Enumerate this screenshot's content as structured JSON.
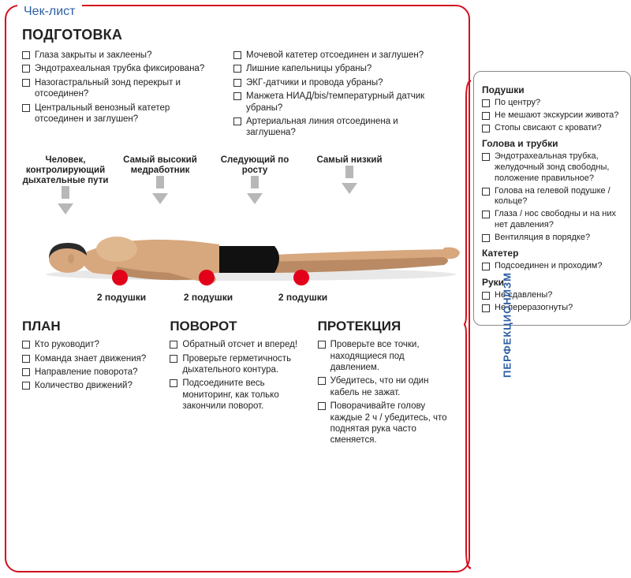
{
  "title_tab": "Чек-лист",
  "preparation": {
    "heading": "ПОДГОТОВКА",
    "left": [
      "Глаза закрыты и заклеены?",
      "Эндотрахеальная трубка фиксирована?",
      "Назогастральный зонд перекрыт и отсоединен?",
      "Центральный венозный катетер отсоединен и заглушен?"
    ],
    "right": [
      "Мочевой катетер отсоединен и заглушен?",
      "Лишние капельницы убраны?",
      "ЭКГ-датчики и провода убраны?",
      "Манжета НИАД/bis/температурный датчик убраны?",
      "Артериальная линия отсоединена и заглушена?"
    ]
  },
  "staff": [
    {
      "label": "Человек, контролирующий дыхательные пути"
    },
    {
      "label": "Самый высокий медработник"
    },
    {
      "label": "Следующий по росту"
    },
    {
      "label": "Самый низкий"
    }
  ],
  "pillows": {
    "label": "2 подушки",
    "count": 3
  },
  "plan": {
    "heading": "ПЛАН",
    "items": [
      "Кто руководит?",
      "Команда знает движения?",
      "Направление поворота?",
      "Количество движений?"
    ]
  },
  "turn": {
    "heading": "ПОВОРОТ",
    "items": [
      "Обратный отсчет и вперед!",
      "Проверьте герметичность дыхательного контура.",
      "Подсоедините весь мониторинг, как только закончили поворот."
    ]
  },
  "protection": {
    "heading": "ПРОТЕКЦИЯ",
    "items": [
      "Проверьте все точки, находящиеся под давлением.",
      "Убедитесь, что ни один кабель не зажат.",
      "Поворачивайте голову каждые 2 ч / убедитесь, что поднятая рука часто сменяется."
    ]
  },
  "perfectionism": {
    "vlabel": "ПЕРФЕКЦИОНИЗМ",
    "groups": [
      {
        "title": "Подушки",
        "items": [
          "По центру?",
          "Не мешают экскурсии живота?",
          "Стопы свисают с кровати?"
        ]
      },
      {
        "title": "Голова и трубки",
        "items": [
          "Эндотрахеальная трубка, желудочный зонд свободны, положение правильное?",
          "Голова на гелевой подушке / кольце?",
          "Глаза / нос свободны и на них нет давления?",
          "Вентиляция в порядке?"
        ]
      },
      {
        "title": "Катетер",
        "items": [
          "Подсоединен и проходим?"
        ]
      },
      {
        "title": "Руки",
        "items": [
          "Не сдавлены?",
          "Не переразогнуты?"
        ]
      }
    ]
  },
  "colors": {
    "border_red": "#d01020",
    "dot_red": "#e2001a",
    "arrow_gray": "#b8b8b8",
    "blue": "#2c5fa5",
    "skin": "#d7a77e",
    "skin_shadow": "#b98a63",
    "hair": "#2a2a2a",
    "shorts": "#111"
  }
}
